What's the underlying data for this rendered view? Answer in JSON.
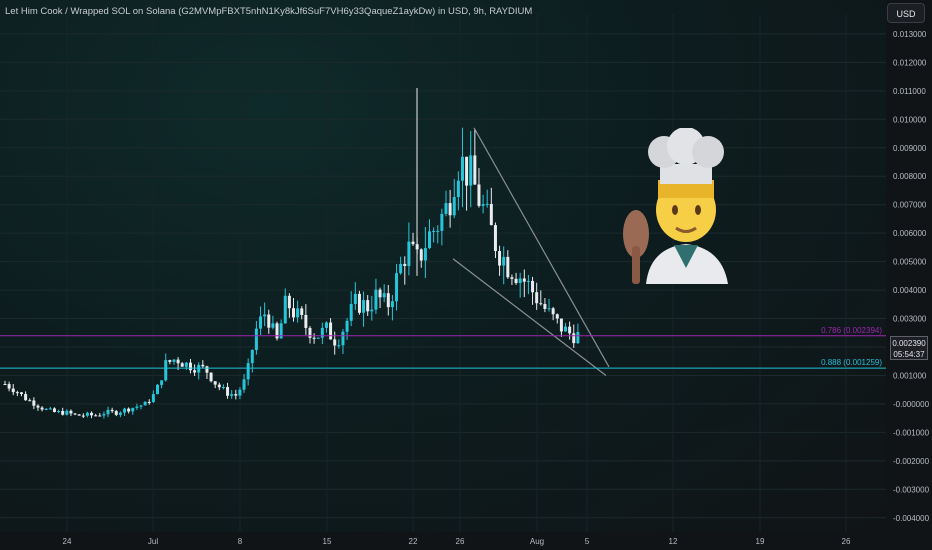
{
  "header": {
    "title": "Let Him Cook / Wrapped SOL on Solana (G2MVMpFBXT5nhN1Ky8kJf6SuF7VH6y33QaqueZ1aykDw) in USD, 9h, RAYDIUM",
    "currency": "USD"
  },
  "price": {
    "value": "0.002390",
    "countdown": "05:54:37"
  },
  "fib_levels": [
    {
      "label": "0.786 (0.002394)",
      "value": 0.002394,
      "color": "#9c27b0"
    },
    {
      "label": "0.888 (0.001259)",
      "value": 0.001259,
      "color": "#22c1d6"
    }
  ],
  "colors": {
    "up": "#26c6da",
    "down": "#e9ecef",
    "trendline": "#8a8f96"
  },
  "chart_data": {
    "type": "candlestick",
    "ylim": [
      -0.0045,
      0.0137
    ],
    "y_ticks": [
      "0.013000",
      "0.012000",
      "0.011000",
      "0.010000",
      "0.009000",
      "0.008000",
      "0.007000",
      "0.006000",
      "0.005000",
      "0.004000",
      "0.003000",
      "0.002000",
      "0.001000",
      "-0.000000",
      "-0.001000",
      "-0.002000",
      "-0.003000",
      "-0.004000"
    ],
    "x_ticks": [
      "24",
      "Jul",
      "8",
      "15",
      "22",
      "26",
      "Aug",
      "5",
      "12",
      "19",
      "26"
    ],
    "close_path": [
      0.0007,
      0.0005,
      0.0002,
      0.0,
      -0.0002,
      -0.0003,
      -0.0003,
      -0.0004,
      -0.0004,
      -0.0004,
      -0.0003,
      -0.0003,
      -0.0002,
      -0.0001,
      0.0,
      0.0004,
      0.0014,
      0.0016,
      0.0014,
      0.0013,
      0.0012,
      0.0007,
      0.0004,
      0.0003,
      0.0009,
      0.0026,
      0.0033,
      0.0021,
      0.0036,
      0.0031,
      0.0027,
      0.0024,
      0.0026,
      0.0022,
      0.0029,
      0.0036,
      0.0034,
      0.0038,
      0.0034,
      0.0044,
      0.0055,
      0.005,
      0.0058,
      0.0063,
      0.0069,
      0.0086,
      0.0082,
      0.0074,
      0.0064,
      0.0055,
      0.0049,
      0.0046,
      0.0042,
      0.0037,
      0.0032,
      0.0028,
      0.0025,
      0.0024
    ],
    "trend_lines": [
      {
        "from": [
          "26",
          0.0097
        ],
        "to": [
          "5",
          0.0013
        ]
      },
      {
        "from": [
          "24 Jul",
          0.0051
        ],
        "to": [
          "5",
          0.001
        ]
      }
    ]
  }
}
